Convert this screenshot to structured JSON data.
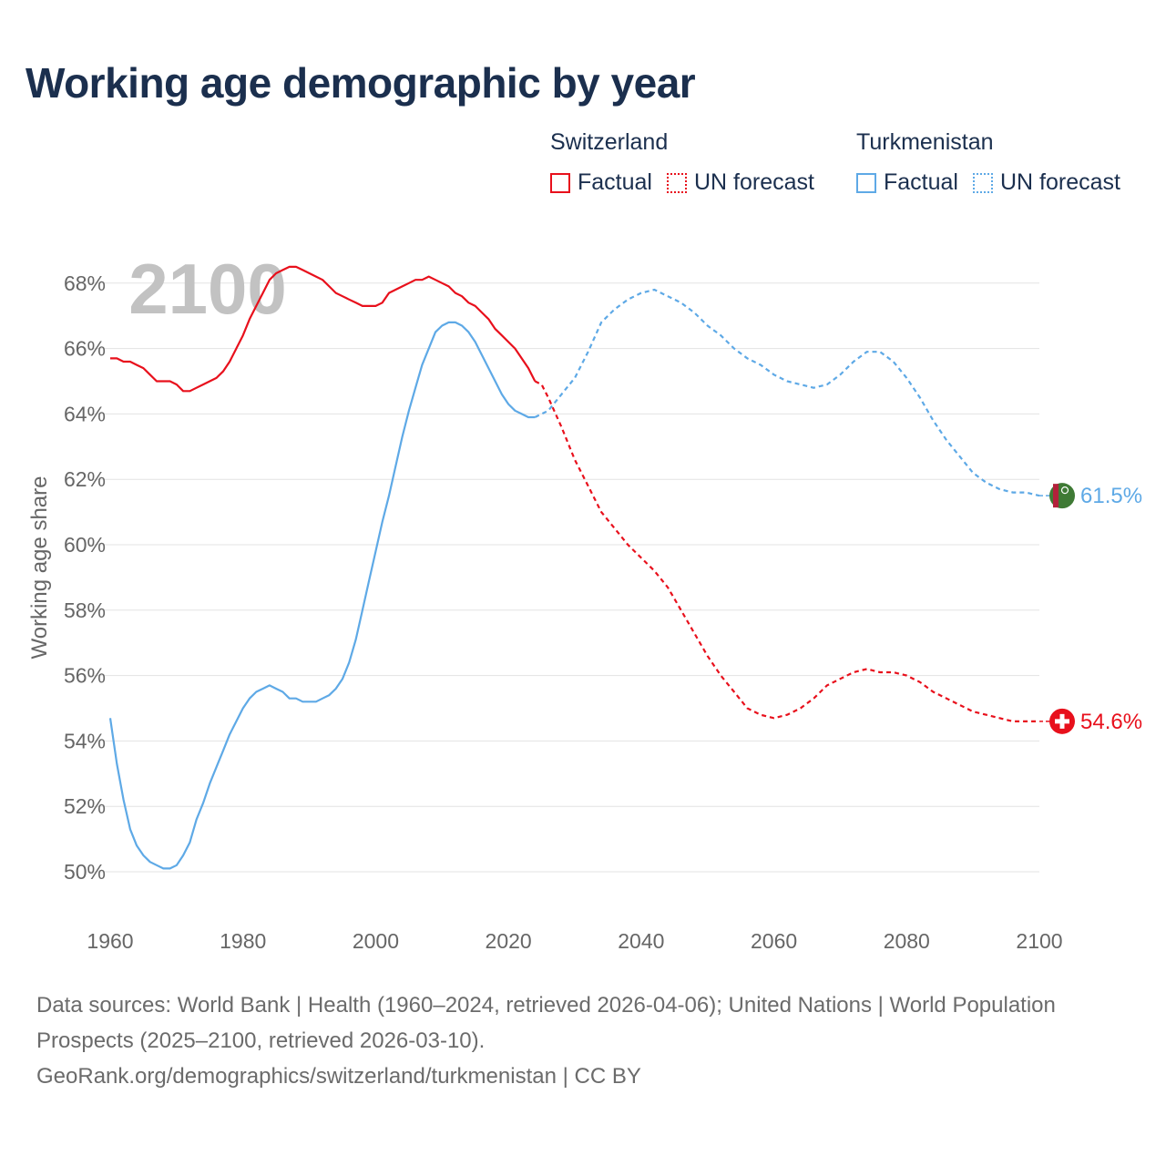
{
  "title": "Working age demographic by year",
  "legend": {
    "groups": [
      {
        "name": "Switzerland",
        "factual_label": "Factual",
        "forecast_label": "UN forecast",
        "color": "#e8101c"
      },
      {
        "name": "Turkmenistan",
        "factual_label": "Factual",
        "forecast_label": "UN forecast",
        "color": "#5ea9e6"
      }
    ]
  },
  "footer": {
    "sources": "Data sources: World Bank | Health (1960–2024, retrieved 2026-04-06); United Nations | World Population Prospects (2025–2100, retrieved 2026-03-10).",
    "credit": "GeoRank.org/demographics/switzerland/turkmenistan | CC BY"
  },
  "chart_data": {
    "type": "line",
    "ylabel": "Working age share",
    "xlabel": "",
    "year_watermark": "2100",
    "xlim": [
      1960,
      2100
    ],
    "ylim": [
      49,
      69
    ],
    "grid": true,
    "x_ticks": [
      1960,
      1980,
      2000,
      2020,
      2040,
      2060,
      2080,
      2100
    ],
    "x_tick_labels": [
      "1960",
      "1980",
      "2000",
      "2020",
      "2040",
      "2060",
      "2080",
      "2100"
    ],
    "y_ticks": [
      50,
      52,
      54,
      56,
      58,
      60,
      62,
      64,
      66,
      68
    ],
    "y_tick_labels": [
      "50%",
      "52%",
      "54%",
      "56%",
      "58%",
      "60%",
      "62%",
      "64%",
      "66%",
      "68%"
    ],
    "series": [
      {
        "name": "Switzerland",
        "color": "#e8101c",
        "end_label": "54.6%",
        "end_icon": "swiss-flag-icon",
        "factual": {
          "x": [
            1960,
            1961,
            1962,
            1963,
            1964,
            1965,
            1966,
            1967,
            1968,
            1969,
            1970,
            1971,
            1972,
            1973,
            1974,
            1975,
            1976,
            1977,
            1978,
            1979,
            1980,
            1981,
            1982,
            1983,
            1984,
            1985,
            1986,
            1987,
            1988,
            1989,
            1990,
            1991,
            1992,
            1993,
            1994,
            1995,
            1996,
            1997,
            1998,
            1999,
            2000,
            2001,
            2002,
            2003,
            2004,
            2005,
            2006,
            2007,
            2008,
            2009,
            2010,
            2011,
            2012,
            2013,
            2014,
            2015,
            2016,
            2017,
            2018,
            2019,
            2020,
            2021,
            2022,
            2023,
            2024
          ],
          "y": [
            65.7,
            65.7,
            65.6,
            65.6,
            65.5,
            65.4,
            65.2,
            65.0,
            65.0,
            65.0,
            64.9,
            64.7,
            64.7,
            64.8,
            64.9,
            65.0,
            65.1,
            65.3,
            65.6,
            66.0,
            66.4,
            66.9,
            67.3,
            67.7,
            68.1,
            68.3,
            68.4,
            68.5,
            68.5,
            68.4,
            68.3,
            68.2,
            68.1,
            67.9,
            67.7,
            67.6,
            67.5,
            67.4,
            67.3,
            67.3,
            67.3,
            67.4,
            67.7,
            67.8,
            67.9,
            68.0,
            68.1,
            68.1,
            68.2,
            68.1,
            68.0,
            67.9,
            67.7,
            67.6,
            67.4,
            67.3,
            67.1,
            66.9,
            66.6,
            66.4,
            66.2,
            66.0,
            65.7,
            65.4,
            65.0
          ]
        },
        "forecast": {
          "x": [
            2024,
            2025,
            2026,
            2028,
            2030,
            2032,
            2034,
            2036,
            2038,
            2040,
            2042,
            2044,
            2046,
            2048,
            2050,
            2052,
            2054,
            2056,
            2058,
            2060,
            2062,
            2064,
            2066,
            2068,
            2070,
            2072,
            2074,
            2076,
            2078,
            2080,
            2082,
            2084,
            2086,
            2088,
            2090,
            2092,
            2094,
            2096,
            2098,
            2100
          ],
          "y": [
            65.0,
            64.9,
            64.5,
            63.6,
            62.6,
            61.8,
            61.0,
            60.5,
            60.0,
            59.6,
            59.2,
            58.7,
            58.0,
            57.3,
            56.6,
            56.0,
            55.5,
            55.0,
            54.8,
            54.7,
            54.8,
            55.0,
            55.3,
            55.7,
            55.9,
            56.1,
            56.2,
            56.1,
            56.1,
            56.0,
            55.8,
            55.5,
            55.3,
            55.1,
            54.9,
            54.8,
            54.7,
            54.6,
            54.6,
            54.6
          ]
        }
      },
      {
        "name": "Turkmenistan",
        "color": "#5ea9e6",
        "end_label": "61.5%",
        "end_icon": "turkmen-flag-icon",
        "factual": {
          "x": [
            1960,
            1961,
            1962,
            1963,
            1964,
            1965,
            1966,
            1967,
            1968,
            1969,
            1970,
            1971,
            1972,
            1973,
            1974,
            1975,
            1976,
            1977,
            1978,
            1979,
            1980,
            1981,
            1982,
            1983,
            1984,
            1985,
            1986,
            1987,
            1988,
            1989,
            1990,
            1991,
            1992,
            1993,
            1994,
            1995,
            1996,
            1997,
            1998,
            1999,
            2000,
            2001,
            2002,
            2003,
            2004,
            2005,
            2006,
            2007,
            2008,
            2009,
            2010,
            2011,
            2012,
            2013,
            2014,
            2015,
            2016,
            2017,
            2018,
            2019,
            2020,
            2021,
            2022,
            2023,
            2024
          ],
          "y": [
            54.7,
            53.3,
            52.2,
            51.3,
            50.8,
            50.5,
            50.3,
            50.2,
            50.1,
            50.1,
            50.2,
            50.5,
            50.9,
            51.6,
            52.1,
            52.7,
            53.2,
            53.7,
            54.2,
            54.6,
            55.0,
            55.3,
            55.5,
            55.6,
            55.7,
            55.6,
            55.5,
            55.3,
            55.3,
            55.2,
            55.2,
            55.2,
            55.3,
            55.4,
            55.6,
            55.9,
            56.4,
            57.1,
            58.0,
            58.9,
            59.8,
            60.7,
            61.5,
            62.4,
            63.3,
            64.1,
            64.8,
            65.5,
            66.0,
            66.5,
            66.7,
            66.8,
            66.8,
            66.7,
            66.5,
            66.2,
            65.8,
            65.4,
            65.0,
            64.6,
            64.3,
            64.1,
            64.0,
            63.9,
            63.9
          ]
        },
        "forecast": {
          "x": [
            2024,
            2026,
            2028,
            2030,
            2032,
            2034,
            2036,
            2038,
            2040,
            2042,
            2044,
            2046,
            2048,
            2050,
            2052,
            2054,
            2056,
            2058,
            2060,
            2062,
            2064,
            2066,
            2068,
            2070,
            2072,
            2074,
            2076,
            2078,
            2080,
            2082,
            2084,
            2086,
            2088,
            2090,
            2092,
            2094,
            2096,
            2098,
            2100
          ],
          "y": [
            63.9,
            64.1,
            64.6,
            65.1,
            65.9,
            66.8,
            67.2,
            67.5,
            67.7,
            67.8,
            67.6,
            67.4,
            67.1,
            66.7,
            66.4,
            66.0,
            65.7,
            65.5,
            65.2,
            65.0,
            64.9,
            64.8,
            64.9,
            65.2,
            65.6,
            65.9,
            65.9,
            65.6,
            65.1,
            64.5,
            63.8,
            63.2,
            62.7,
            62.2,
            61.9,
            61.7,
            61.6,
            61.6,
            61.5
          ]
        }
      }
    ]
  }
}
